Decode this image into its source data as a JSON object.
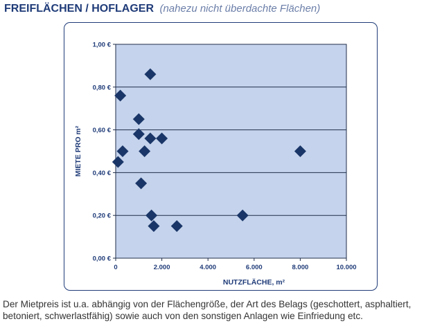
{
  "header": {
    "title": "FREIFLÄCHEN / HOFLAGER",
    "subtitle": "(nahezu nicht überdachte Flächen)"
  },
  "caption": "Der Mietpreis ist u.a. abhängig von der Flächengröße, der Art des Belags (geschottert, asphaltiert, betoniert, schwerlastfähig) sowie auch von den sonstigen Anlagen wie Einfriedung etc.",
  "colors": {
    "plot_background": "#c5d3ec",
    "marker": "#1a3668",
    "axis_text": "#1f3b78",
    "frame": "#1f3b78"
  },
  "chart_data": {
    "type": "scatter",
    "title": "",
    "xlabel": "NUTZFLÄCHE, m²",
    "ylabel": "MIETE PRO m²",
    "xlim": [
      0,
      10000
    ],
    "ylim": [
      0,
      1.0
    ],
    "x_ticks": [
      0,
      2000,
      4000,
      6000,
      8000,
      10000
    ],
    "x_tick_labels": [
      "0",
      "2.000",
      "4.000",
      "6.000",
      "8.000",
      "10.000"
    ],
    "y_ticks": [
      0,
      0.2,
      0.4,
      0.6,
      0.8,
      1.0
    ],
    "y_tick_labels": [
      "0,00 €",
      "0,20 €",
      "0,40 €",
      "0,60 €",
      "0,80 €",
      "1,00 €"
    ],
    "grid": "horizontal",
    "marker": "diamond",
    "points": [
      {
        "x": 200,
        "y": 0.76
      },
      {
        "x": 1500,
        "y": 0.86
      },
      {
        "x": 1000,
        "y": 0.65
      },
      {
        "x": 1000,
        "y": 0.58
      },
      {
        "x": 1500,
        "y": 0.56
      },
      {
        "x": 2000,
        "y": 0.56
      },
      {
        "x": 300,
        "y": 0.5
      },
      {
        "x": 1250,
        "y": 0.5
      },
      {
        "x": 100,
        "y": 0.45
      },
      {
        "x": 1100,
        "y": 0.35
      },
      {
        "x": 1550,
        "y": 0.2
      },
      {
        "x": 1650,
        "y": 0.15
      },
      {
        "x": 2650,
        "y": 0.15
      },
      {
        "x": 5500,
        "y": 0.2
      },
      {
        "x": 8000,
        "y": 0.5
      }
    ]
  }
}
